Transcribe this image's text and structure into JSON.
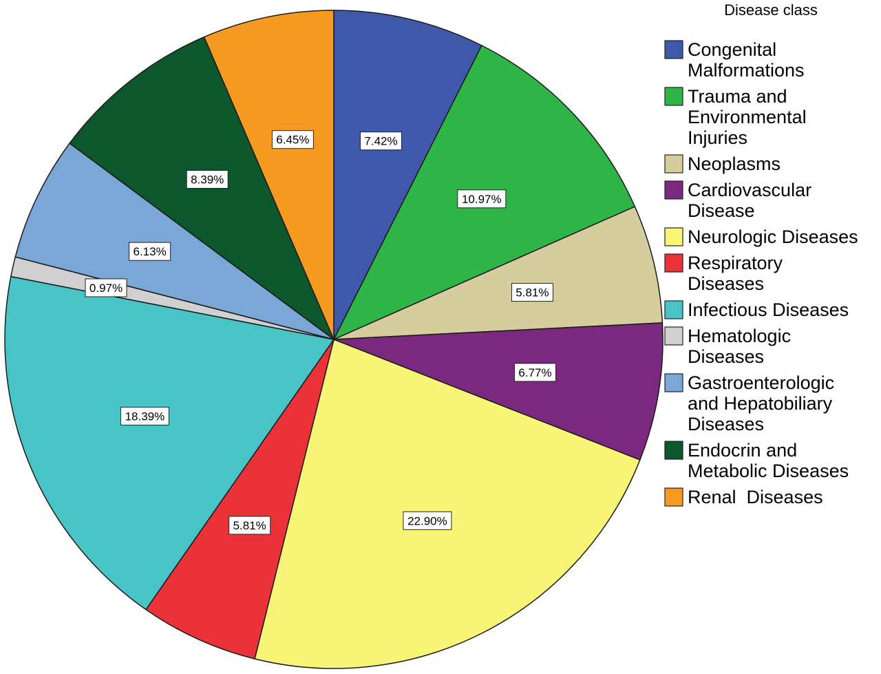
{
  "chart_data": {
    "type": "pie",
    "legend_title": "Disease class",
    "legend_placement": "right",
    "slices": [
      {
        "name": "Congenital Malformations",
        "legend_lines": [
          "Congenital",
          "Malformations"
        ],
        "value": 7.42,
        "label": "7.42%",
        "color": "#3f58aa"
      },
      {
        "name": "Trauma and Environmental Injuries",
        "legend_lines": [
          "Trauma and",
          "Environmental",
          "Injuries"
        ],
        "value": 10.97,
        "label": "10.97%",
        "color": "#2fb447"
      },
      {
        "name": "Neoplasms",
        "legend_lines": [
          "Neoplasms"
        ],
        "value": 5.81,
        "label": "5.81%",
        "color": "#d5cd9d"
      },
      {
        "name": "Cardiovascular Disease",
        "legend_lines": [
          "Cardiovascular",
          "Disease"
        ],
        "value": 6.77,
        "label": "6.77%",
        "color": "#7a2880"
      },
      {
        "name": "Neurologic Diseases",
        "legend_lines": [
          "Neurologic Diseases"
        ],
        "value": 22.9,
        "label": "22.90%",
        "color": "#f8f577"
      },
      {
        "name": "Respiratory Diseases",
        "legend_lines": [
          "Respiratory",
          "Diseases"
        ],
        "value": 5.81,
        "label": "5.81%",
        "color": "#ea3238"
      },
      {
        "name": "Infectious Diseases",
        "legend_lines": [
          "Infectious Diseases"
        ],
        "value": 18.39,
        "label": "18.39%",
        "color": "#48c3c6"
      },
      {
        "name": "Hematologic Diseases",
        "legend_lines": [
          "Hematologic",
          "Diseases"
        ],
        "value": 0.97,
        "label": "0.97%",
        "color": "#d0d0d0"
      },
      {
        "name": "Gastroenterologic and Hepatobiliary Diseases",
        "legend_lines": [
          "Gastroenterologic",
          "and Hepatobiliary",
          "Diseases"
        ],
        "value": 6.13,
        "label": "6.13%",
        "color": "#7ba7d6"
      },
      {
        "name": "Endocrin and Metabolic Diseases",
        "legend_lines": [
          "Endocrin and",
          "Metabolic Diseases"
        ],
        "value": 8.39,
        "label": "8.39%",
        "color": "#0c572c"
      },
      {
        "name": "Renal Diseases",
        "legend_lines": [
          "Renal  Diseases"
        ],
        "value": 6.45,
        "label": "6.45%",
        "color": "#f79a22"
      }
    ]
  }
}
